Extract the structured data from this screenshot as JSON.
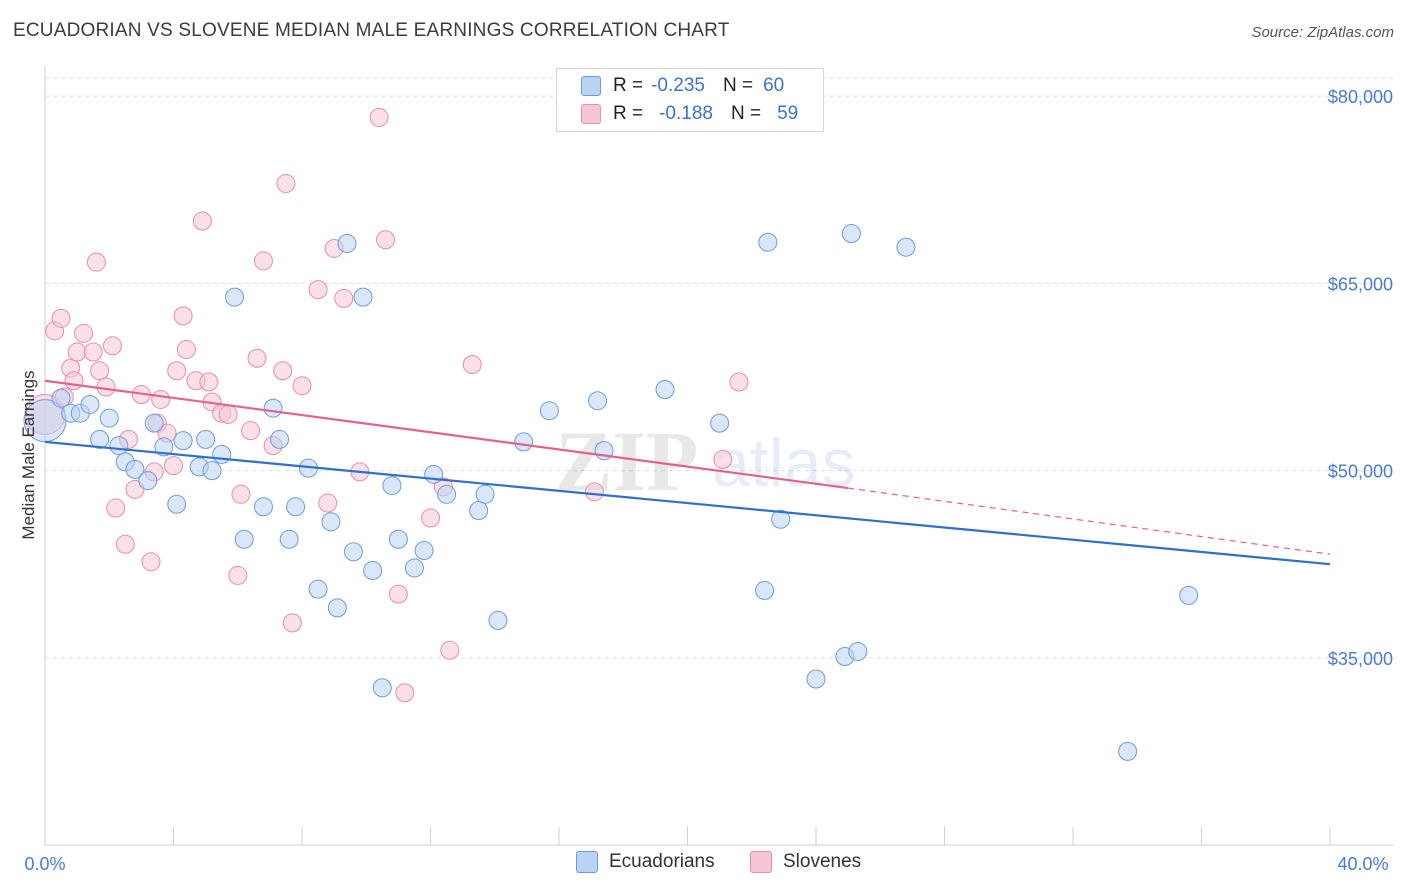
{
  "header": {
    "title": "ECUADORIAN VS SLOVENE MEDIAN MALE EARNINGS CORRELATION CHART",
    "source": "Source: ZipAtlas.com"
  },
  "watermark": {
    "zip": "ZIP",
    "atlas": "atlas"
  },
  "legend_top": {
    "rows": [
      {
        "r_label": "R =",
        "r_value": "-0.235",
        "n_label": "N =",
        "n_value": "60"
      },
      {
        "r_label": "R =",
        "r_value": "-0.188",
        "n_label": "N =",
        "n_value": "59"
      }
    ]
  },
  "legend_bottom": {
    "items": [
      "Ecuadorians",
      "Slovenes"
    ]
  },
  "colors": {
    "blue_fill": "#b9d3f3",
    "blue_stroke": "#6f9be0",
    "blue_line": "#2f6fd0",
    "pink_fill": "#f7c6d6",
    "pink_stroke": "#e98eab",
    "pink_line": "#e2628a",
    "axis_text": "#4a7bd0",
    "grid": "#dddddd"
  },
  "chart_data": {
    "type": "scatter",
    "title": "ECUADORIAN VS SLOVENE MEDIAN MALE EARNINGS CORRELATION CHART",
    "xlabel": "",
    "ylabel": "Median Male Earnings",
    "xlim": [
      0,
      40
    ],
    "ylim": [
      20000,
      82500
    ],
    "x_tick_labels": [
      "0.0%",
      "40.0%"
    ],
    "y_ticks": [
      35000,
      50000,
      65000,
      80000
    ],
    "y_tick_labels": [
      "$35,000",
      "$50,000",
      "$65,000",
      "$80,000"
    ],
    "grid": true,
    "series": [
      {
        "name": "Ecuadorians",
        "r": -0.235,
        "n": 60,
        "trend": {
          "x": [
            0,
            40
          ],
          "y": [
            52300,
            42500
          ]
        },
        "points": [
          [
            0.0,
            54000
          ],
          [
            0.5,
            55800
          ],
          [
            0.8,
            54600
          ],
          [
            1.1,
            54600
          ],
          [
            1.4,
            55300
          ],
          [
            1.7,
            52500
          ],
          [
            2.0,
            54200
          ],
          [
            2.3,
            52000
          ],
          [
            2.5,
            50700
          ],
          [
            2.8,
            50100
          ],
          [
            3.2,
            49200
          ],
          [
            3.4,
            53800
          ],
          [
            3.7,
            51900
          ],
          [
            4.1,
            47300
          ],
          [
            4.3,
            52400
          ],
          [
            4.8,
            50300
          ],
          [
            5.0,
            52500
          ],
          [
            5.2,
            50000
          ],
          [
            5.5,
            51300
          ],
          [
            5.9,
            63900
          ],
          [
            6.2,
            44500
          ],
          [
            6.8,
            47100
          ],
          [
            7.1,
            55000
          ],
          [
            7.3,
            52500
          ],
          [
            7.6,
            44500
          ],
          [
            7.8,
            47100
          ],
          [
            8.2,
            50200
          ],
          [
            8.5,
            40500
          ],
          [
            8.9,
            45900
          ],
          [
            9.1,
            39000
          ],
          [
            9.6,
            43500
          ],
          [
            9.4,
            68200
          ],
          [
            9.9,
            63900
          ],
          [
            10.2,
            42000
          ],
          [
            10.5,
            32600
          ],
          [
            10.8,
            48800
          ],
          [
            11.0,
            44500
          ],
          [
            11.5,
            42200
          ],
          [
            11.8,
            43600
          ],
          [
            12.1,
            49700
          ],
          [
            12.5,
            48100
          ],
          [
            13.7,
            48100
          ],
          [
            13.5,
            46800
          ],
          [
            14.1,
            38000
          ],
          [
            14.9,
            52300
          ],
          [
            15.7,
            54800
          ],
          [
            17.2,
            55600
          ],
          [
            17.4,
            51600
          ],
          [
            19.3,
            56500
          ],
          [
            21.0,
            53800
          ],
          [
            22.4,
            40400
          ],
          [
            22.5,
            68300
          ],
          [
            22.9,
            46100
          ],
          [
            24.0,
            33300
          ],
          [
            24.9,
            35100
          ],
          [
            25.3,
            35500
          ],
          [
            25.1,
            69000
          ],
          [
            26.8,
            67900
          ],
          [
            35.6,
            40000
          ],
          [
            33.7,
            27500
          ]
        ]
      },
      {
        "name": "Slovenes",
        "r": -0.188,
        "n": 59,
        "trend": {
          "x": [
            0,
            25.0
          ],
          "y": [
            57200,
            48600
          ]
        },
        "trend_dashed": {
          "x": [
            25.0,
            40
          ],
          "y": [
            48600,
            43300
          ]
        },
        "points": [
          [
            0.0,
            54500
          ],
          [
            0.3,
            61200
          ],
          [
            0.5,
            62200
          ],
          [
            0.6,
            55900
          ],
          [
            0.8,
            58200
          ],
          [
            0.9,
            57200
          ],
          [
            1.0,
            59500
          ],
          [
            1.2,
            61000
          ],
          [
            1.5,
            59500
          ],
          [
            1.6,
            66700
          ],
          [
            1.7,
            58000
          ],
          [
            1.9,
            56700
          ],
          [
            2.1,
            60000
          ],
          [
            2.2,
            47000
          ],
          [
            2.5,
            44100
          ],
          [
            2.6,
            52500
          ],
          [
            2.8,
            48500
          ],
          [
            3.0,
            56100
          ],
          [
            3.3,
            42700
          ],
          [
            3.4,
            49900
          ],
          [
            3.5,
            53800
          ],
          [
            3.6,
            55700
          ],
          [
            3.8,
            53000
          ],
          [
            4.1,
            58000
          ],
          [
            4.0,
            50400
          ],
          [
            4.3,
            62400
          ],
          [
            4.4,
            59700
          ],
          [
            4.7,
            57200
          ],
          [
            4.9,
            70000
          ],
          [
            5.1,
            57100
          ],
          [
            5.2,
            55500
          ],
          [
            5.5,
            54600
          ],
          [
            5.7,
            54500
          ],
          [
            6.1,
            48100
          ],
          [
            6.0,
            41600
          ],
          [
            6.4,
            53200
          ],
          [
            6.6,
            59000
          ],
          [
            6.8,
            66800
          ],
          [
            7.1,
            52000
          ],
          [
            7.4,
            58000
          ],
          [
            7.5,
            73000
          ],
          [
            7.7,
            37800
          ],
          [
            8.0,
            56800
          ],
          [
            8.5,
            64500
          ],
          [
            8.8,
            47400
          ],
          [
            9.0,
            67800
          ],
          [
            9.3,
            63800
          ],
          [
            9.8,
            49900
          ],
          [
            10.4,
            78300
          ],
          [
            10.6,
            68500
          ],
          [
            11.0,
            40100
          ],
          [
            11.2,
            32200
          ],
          [
            12.0,
            46200
          ],
          [
            12.4,
            48700
          ],
          [
            12.6,
            35600
          ],
          [
            13.3,
            58500
          ],
          [
            17.1,
            48300
          ],
          [
            21.1,
            50900
          ],
          [
            21.6,
            57100
          ]
        ]
      }
    ]
  }
}
